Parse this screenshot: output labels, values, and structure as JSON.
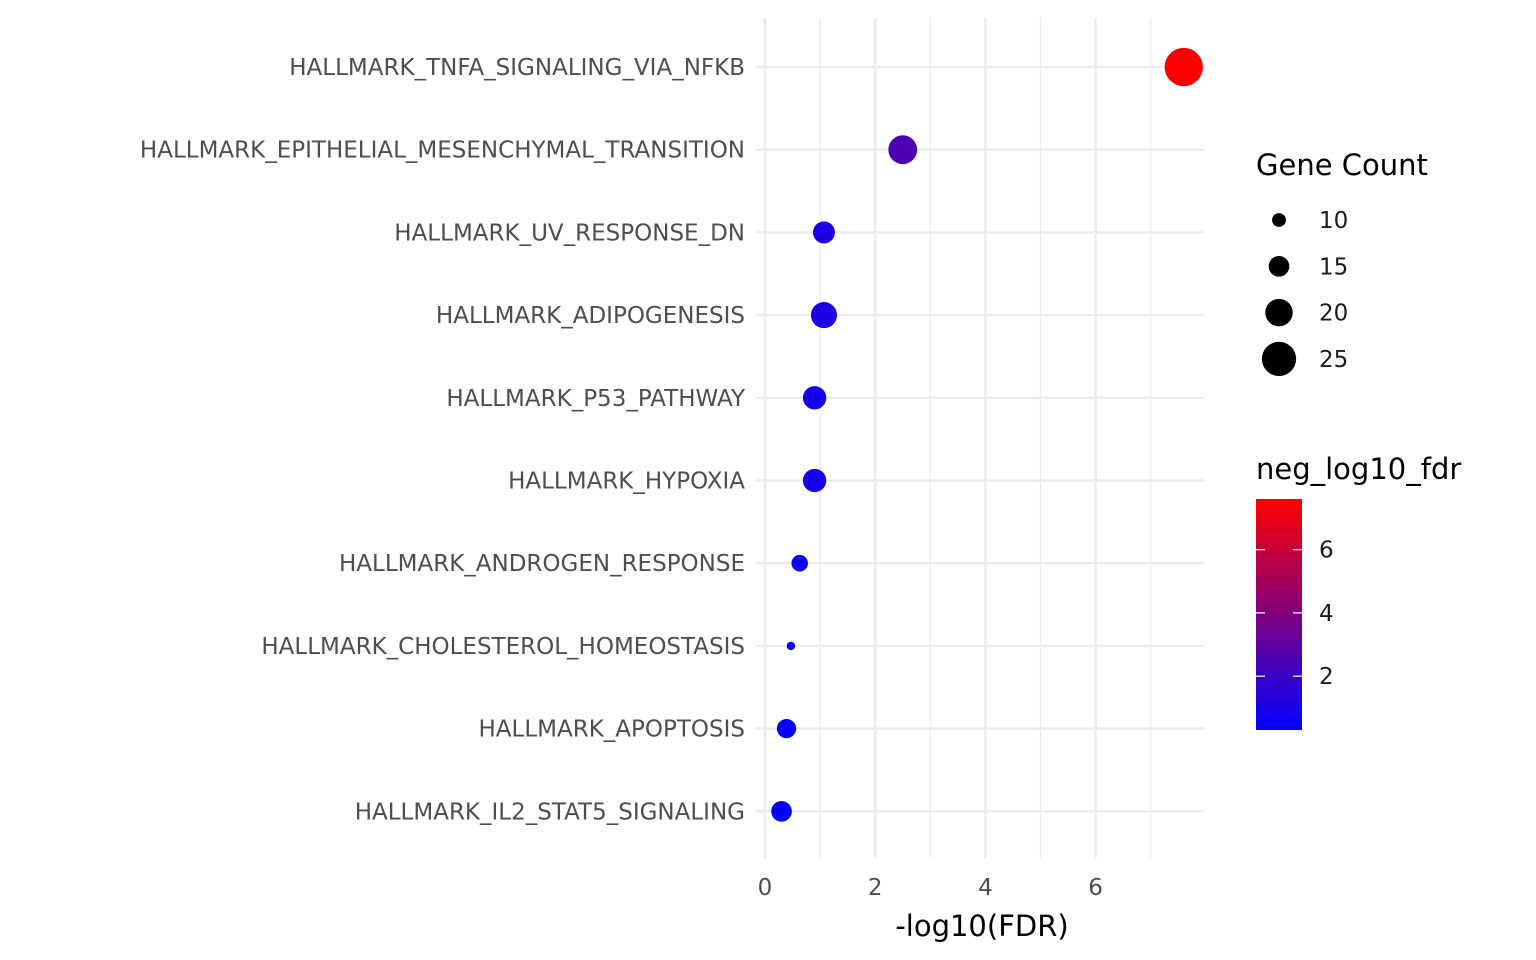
{
  "chart_data": {
    "type": "scatter",
    "xlabel": "-log10(FDR)",
    "ylabel": "",
    "xlim": [
      -0.2,
      7.95
    ],
    "x_ticks": [
      0,
      2,
      4,
      6
    ],
    "grid": true,
    "categories": [
      "HALLMARK_TNFA_SIGNALING_VIA_NFKB",
      "HALLMARK_EPITHELIAL_MESENCHYMAL_TRANSITION",
      "HALLMARK_UV_RESPONSE_DN",
      "HALLMARK_ADIPOGENESIS",
      "HALLMARK_P53_PATHWAY",
      "HALLMARK_HYPOXIA",
      "HALLMARK_ANDROGEN_RESPONSE",
      "HALLMARK_CHOLESTEROL_HOMEOSTASIS",
      "HALLMARK_APOPTOSIS",
      "HALLMARK_IL2_STAT5_SIGNALING"
    ],
    "x": [
      7.6,
      2.5,
      1.07,
      1.07,
      0.9,
      0.9,
      0.63,
      0.47,
      0.39,
      0.3
    ],
    "gene_count": [
      28,
      21,
      16,
      19,
      17,
      17,
      12,
      6,
      14,
      15
    ],
    "size_legend": {
      "title": "Gene Count",
      "values": [
        "10",
        "15",
        "20",
        "25"
      ]
    },
    "color_legend": {
      "title": "neg_log10_fdr",
      "range": [
        0.3,
        7.6
      ],
      "ticks": [
        "2",
        "4",
        "6"
      ],
      "low_color": "#0000ff",
      "high_color": "#ff0000"
    },
    "legend_position": "right"
  }
}
